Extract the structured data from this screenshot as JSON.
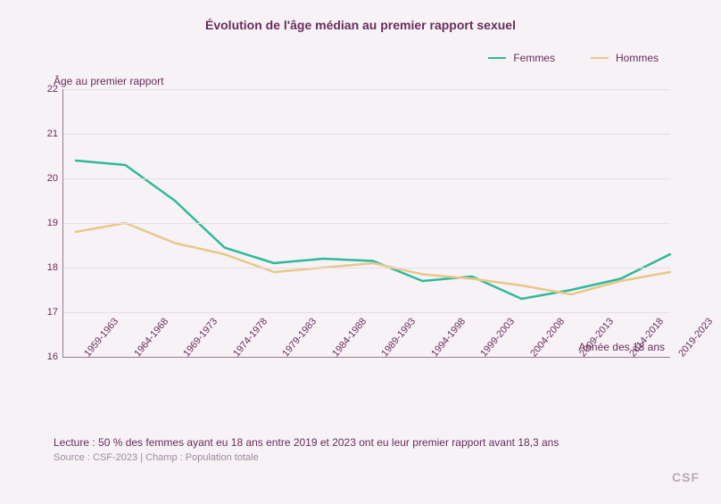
{
  "chart": {
    "type": "line",
    "title": "Évolution de l'âge médian au premier rapport sexuel",
    "title_fontsize": 14,
    "title_color": "#6a2c5d",
    "y_axis_title": "Âge au premier rapport",
    "x_axis_title": "Année des 18 ans",
    "background_color": "#f6f2f6",
    "grid_color": "#e8dde6",
    "axis_color": "#9a7a92",
    "text_color": "#6a2c5d",
    "font_family": "Helvetica Neue, Helvetica, Arial, sans-serif",
    "ylim": [
      16,
      22
    ],
    "ytick_step": 1,
    "y_ticks": [
      16,
      17,
      18,
      19,
      20,
      21,
      22
    ],
    "x_categories": [
      "1959-1963",
      "1964-1968",
      "1969-1973",
      "1974-1978",
      "1979-1983",
      "1984-1988",
      "1989-1993",
      "1994-1998",
      "1999-2003",
      "2004-2008",
      "2009-2013",
      "2014-2018",
      "2019-2023"
    ],
    "x_tick_rotation_deg": -50,
    "line_width": 2.5,
    "legend": {
      "position": "top-right",
      "items": [
        {
          "label": "Femmes",
          "color": "#2fb99a"
        },
        {
          "label": "Hommes",
          "color": "#e8c88a"
        }
      ]
    },
    "series": [
      {
        "name": "Femmes",
        "color": "#2fb99a",
        "values": [
          20.4,
          20.3,
          19.5,
          18.45,
          18.1,
          18.2,
          18.15,
          17.7,
          17.8,
          17.3,
          17.5,
          17.75,
          18.3
        ]
      },
      {
        "name": "Hommes",
        "color": "#e8c88a",
        "values": [
          18.8,
          19.0,
          18.55,
          18.3,
          17.9,
          18.0,
          18.1,
          17.85,
          17.75,
          17.6,
          17.4,
          17.7,
          17.9
        ]
      }
    ]
  },
  "footer": {
    "lecture": "Lecture : 50 % des femmes ayant eu 18 ans entre 2019 et 2023 ont eu leur premier rapport avant 18,3 ans",
    "source": "Source : CSF-2023   |   Champ : Population totale"
  },
  "logo": "CSF"
}
